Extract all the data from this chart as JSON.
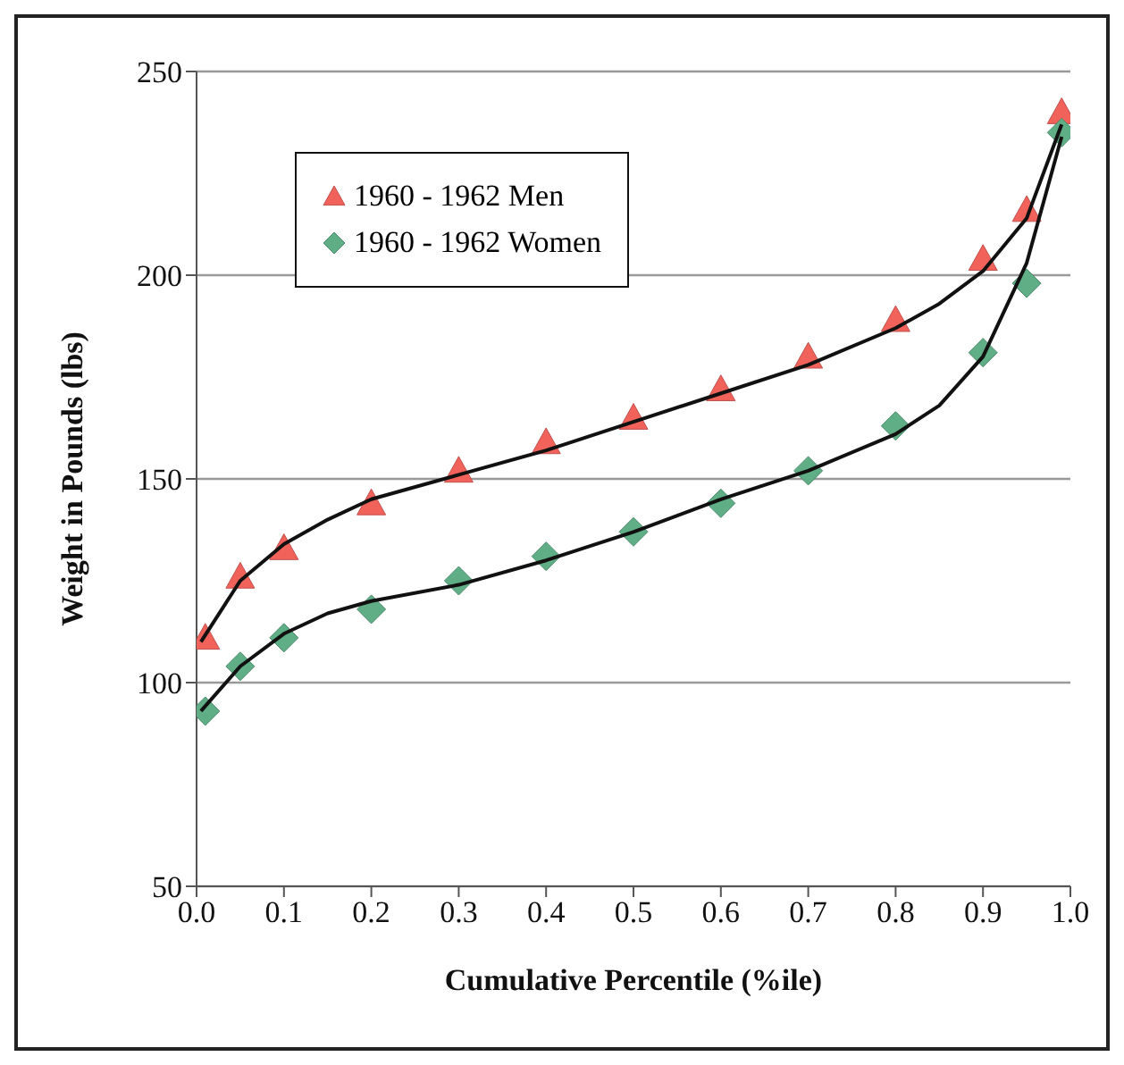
{
  "chart_data": {
    "type": "scatter",
    "xlabel": "Cumulative Percentile (%ile)",
    "ylabel": "Weight in Pounds (lbs)",
    "xlim": [
      0,
      1
    ],
    "xticks": [
      {
        "value": 0,
        "label": "0.0"
      },
      0.1,
      0.2,
      0.3,
      0.4,
      0.5,
      0.6,
      0.7,
      0.8,
      0.9,
      {
        "value": 1,
        "label": "1.0"
      }
    ],
    "ylim": [
      50,
      250
    ],
    "yticks": [
      50,
      100,
      150,
      200,
      250
    ],
    "grid": "y",
    "legend": "top left",
    "series": [
      {
        "name": "1960 - 1962 Men",
        "color": "#f0625a",
        "marker": "triangle",
        "x": [
          0.01,
          0.05,
          0.1,
          0.2,
          0.3,
          0.4,
          0.5,
          0.6,
          0.7,
          0.8,
          0.9,
          0.95,
          0.99
        ],
        "values": [
          111,
          126,
          133,
          144,
          152,
          159,
          165,
          172,
          180,
          189,
          204,
          216,
          240
        ]
      },
      {
        "name": "1960 - 1962 Women",
        "color": "#5fae86",
        "marker": "diamond",
        "x": [
          0.01,
          0.05,
          0.1,
          0.2,
          0.3,
          0.4,
          0.5,
          0.6,
          0.7,
          0.8,
          0.9,
          0.95,
          0.99
        ],
        "values": [
          93,
          104,
          111,
          118,
          125,
          131,
          137,
          144,
          152,
          163,
          181,
          198,
          235
        ]
      },
      {
        "type": "line",
        "color": "#111111",
        "marker": "none",
        "x": [
          0.005,
          0.05,
          0.1,
          0.15,
          0.2,
          0.3,
          0.4,
          0.5,
          0.6,
          0.7,
          0.8,
          0.85,
          0.9,
          0.95,
          0.99
        ],
        "values": [
          110,
          125,
          134,
          140,
          145,
          151,
          157,
          164,
          171,
          178,
          187,
          193,
          201,
          214,
          237
        ]
      },
      {
        "type": "line",
        "color": "#111111",
        "marker": "none",
        "x": [
          0.005,
          0.05,
          0.1,
          0.15,
          0.2,
          0.3,
          0.4,
          0.5,
          0.6,
          0.7,
          0.8,
          0.85,
          0.9,
          0.95,
          0.99
        ],
        "values": [
          93,
          104,
          112,
          117,
          120,
          124,
          130,
          137,
          145,
          152,
          161,
          168,
          180,
          203,
          234
        ]
      }
    ]
  }
}
